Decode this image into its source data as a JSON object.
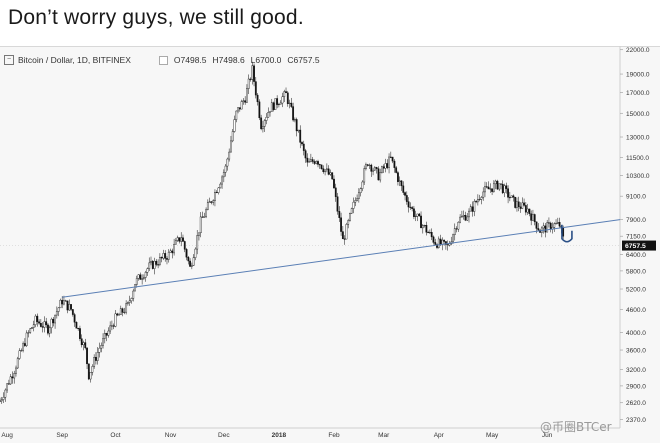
{
  "caption": "Don’t worry guys, we still good.",
  "header": {
    "symbol_title": "Bitcoin / Dollar, 1D, BITFINEX",
    "open": "O7498.5",
    "high": "H7498.6",
    "low": "L6700.0",
    "close": "C6757.5"
  },
  "watermark": "@币圈BTCer",
  "chart_data": {
    "type": "candlestick",
    "x_ticks": [
      "Aug",
      "Sep",
      "Oct",
      "Nov",
      "Dec",
      "2018",
      "Feb",
      "Mar",
      "Apr",
      "May",
      "Jun"
    ],
    "y_ticks": [
      22000,
      19000,
      17000,
      15000,
      13000,
      11500,
      10300,
      9100,
      7900,
      7150,
      6400,
      5800,
      5200,
      4600,
      4000,
      3600,
      3200,
      2900,
      2620,
      2370
    ],
    "y_scale": "log",
    "ylim": [
      2250,
      22500
    ],
    "last_price_label": "6757.5",
    "close_path": [
      [
        "2017-07-28",
        2650
      ],
      [
        "2017-08-05",
        3200
      ],
      [
        "2017-08-12",
        3900
      ],
      [
        "2017-08-17",
        4300
      ],
      [
        "2017-08-24",
        4100
      ],
      [
        "2017-09-01",
        4850
      ],
      [
        "2017-09-06",
        4600
      ],
      [
        "2017-09-14",
        3600
      ],
      [
        "2017-09-16",
        3100
      ],
      [
        "2017-09-22",
        3650
      ],
      [
        "2017-10-01",
        4350
      ],
      [
        "2017-10-08",
        4700
      ],
      [
        "2017-10-12",
        5400
      ],
      [
        "2017-10-20",
        5950
      ],
      [
        "2017-10-31",
        6400
      ],
      [
        "2017-11-07",
        7150
      ],
      [
        "2017-11-12",
        5900
      ],
      [
        "2017-11-18",
        7800
      ],
      [
        "2017-11-26",
        9300
      ],
      [
        "2017-12-02",
        10800
      ],
      [
        "2017-12-08",
        15000
      ],
      [
        "2017-12-13",
        16500
      ],
      [
        "2017-12-17",
        19500
      ],
      [
        "2017-12-22",
        14000
      ],
      [
        "2017-12-27",
        15500
      ],
      [
        "2018-01-05",
        16800
      ],
      [
        "2018-01-10",
        14200
      ],
      [
        "2018-01-17",
        11000
      ],
      [
        "2018-01-22",
        11400
      ],
      [
        "2018-01-31",
        10100
      ],
      [
        "2018-02-06",
        6950
      ],
      [
        "2018-02-12",
        8600
      ],
      [
        "2018-02-20",
        11200
      ],
      [
        "2018-02-26",
        10300
      ],
      [
        "2018-03-05",
        11400
      ],
      [
        "2018-03-12",
        9300
      ],
      [
        "2018-03-18",
        8200
      ],
      [
        "2018-03-30",
        6900
      ],
      [
        "2018-04-06",
        6700
      ],
      [
        "2018-04-12",
        7900
      ],
      [
        "2018-04-18",
        8200
      ],
      [
        "2018-04-25",
        9300
      ],
      [
        "2018-05-05",
        9800
      ],
      [
        "2018-05-14",
        8700
      ],
      [
        "2018-05-21",
        8400
      ],
      [
        "2018-05-28",
        7400
      ],
      [
        "2018-06-04",
        7650
      ],
      [
        "2018-06-08",
        7650
      ],
      [
        "2018-06-11",
        6750
      ]
    ],
    "trendline": [
      [
        "2017-09-01",
        4950
      ],
      [
        "2018-07-12",
        7900
      ]
    ],
    "annotation_hook": "U-shaped bounce marker on trendline at 2018-06-11",
    "grid": false,
    "colors": {
      "candles": "#111111",
      "trendline": "#5a7fb5",
      "price_tag_bg": "#111111",
      "price_tag_text": "#ffffff",
      "background": "#f7f7f7"
    }
  }
}
